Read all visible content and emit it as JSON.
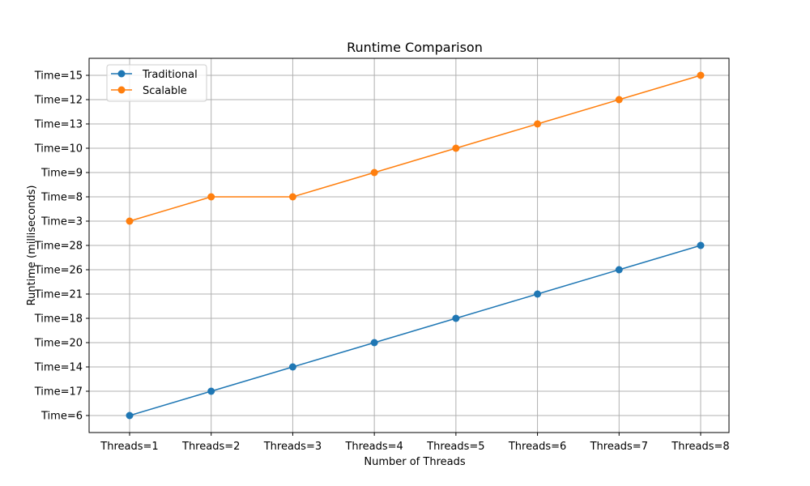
{
  "chart_data": {
    "type": "line",
    "title": "Runtime Comparison",
    "xlabel": "Number of Threads",
    "ylabel": "Runtime (milliseconds)",
    "categories": [
      "Threads=1",
      "Threads=2",
      "Threads=3",
      "Threads=4",
      "Threads=5",
      "Threads=6",
      "Threads=7",
      "Threads=8"
    ],
    "y_categories": [
      "Time=6",
      "Time=17",
      "Time=14",
      "Time=20",
      "Time=18",
      "Time=21",
      "Time=26",
      "Time=28",
      "Time=3",
      "Time=8",
      "Time=9",
      "Time=10",
      "Time=13",
      "Time=12",
      "Time=15"
    ],
    "series": [
      {
        "name": "Traditional",
        "color": "#1f77b4",
        "values": [
          "Time=6",
          "Time=17",
          "Time=14",
          "Time=20",
          "Time=18",
          "Time=21",
          "Time=26",
          "Time=28"
        ]
      },
      {
        "name": "Scalable",
        "color": "#ff7f0e",
        "values": [
          "Time=3",
          "Time=8",
          "Time=8",
          "Time=9",
          "Time=10",
          "Time=13",
          "Time=12",
          "Time=15"
        ]
      }
    ],
    "grid": true,
    "legend_position": "top-left",
    "marker": "circle"
  }
}
